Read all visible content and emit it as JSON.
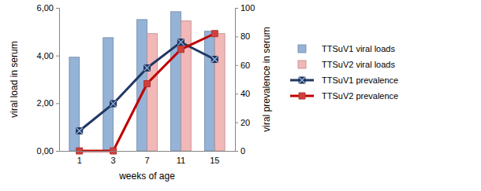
{
  "chart_data": {
    "type": "bar",
    "x_label": "weeks of age",
    "y_label": "viral load in serum",
    "y2_label": "viral prevalence in serum",
    "categories": [
      "1",
      "3",
      "7",
      "11",
      "15"
    ],
    "ylim": [
      0,
      6
    ],
    "yticks": [
      {
        "value": 0,
        "label": "0,00"
      },
      {
        "value": 2,
        "label": "2,00"
      },
      {
        "value": 4,
        "label": "4,00"
      },
      {
        "value": 6,
        "label": "6,00"
      }
    ],
    "y2lim": [
      0,
      100
    ],
    "y2ticks": [
      0,
      20,
      40,
      60,
      80,
      100
    ],
    "grid": false,
    "legend": "right",
    "series": [
      {
        "name": "TTSuV1 viral loads",
        "type": "bar",
        "color": "#95B3D7",
        "values": [
          3.93,
          4.75,
          5.51,
          5.84,
          5.02
        ]
      },
      {
        "name": "TTSuV2 viral loads",
        "type": "bar",
        "color": "#F2B8B8",
        "values": [
          null,
          null,
          4.92,
          5.45,
          4.92
        ]
      },
      {
        "name": "TTSuV1 prevalence",
        "type": "line",
        "axis": "y2",
        "color": "#1F3864",
        "marker": "square-x",
        "values": [
          14,
          33,
          58,
          76,
          64
        ]
      },
      {
        "name": "TTSuV2 prevalence",
        "type": "line",
        "axis": "y2",
        "color": "#C00000",
        "marker": "square",
        "values": [
          0,
          0,
          47,
          71,
          82
        ]
      }
    ]
  }
}
